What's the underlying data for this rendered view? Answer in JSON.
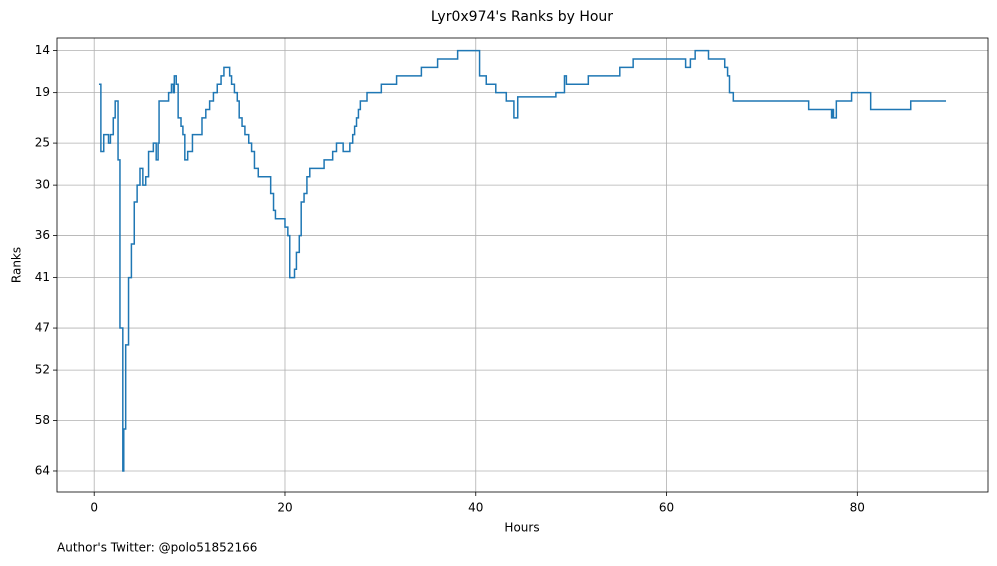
{
  "chart_data": {
    "type": "line",
    "title": "Lyr0x974's Ranks by Hour",
    "xlabel": "Hours",
    "ylabel": "Ranks",
    "footer": "Author's Twitter: @polo51852166",
    "drawstyle": "steps-post",
    "grid": true,
    "inverted_y": true,
    "xlim": [
      -3.9,
      93.7
    ],
    "ylim": [
      66.5,
      12.5
    ],
    "xticks": [
      0,
      20,
      40,
      60,
      80
    ],
    "yticks": [
      14,
      19,
      25,
      30,
      36,
      41,
      47,
      52,
      58,
      64
    ],
    "series": [
      {
        "color": "#1f77b4",
        "x": [
          0.5,
          0.7,
          1.0,
          1.5,
          1.7,
          2.0,
          2.2,
          2.5,
          2.7,
          3.0,
          3.1,
          3.3,
          3.6,
          3.9,
          4.2,
          4.5,
          4.8,
          5.1,
          5.4,
          5.7,
          6.2,
          6.5,
          6.7,
          6.8,
          7.8,
          8.1,
          8.3,
          8.4,
          8.6,
          8.8,
          9.1,
          9.3,
          9.5,
          9.8,
          10.3,
          11.3,
          11.7,
          12.1,
          12.5,
          12.9,
          13.3,
          13.6,
          14.2,
          14.4,
          14.7,
          15.0,
          15.2,
          15.5,
          15.8,
          16.2,
          16.5,
          16.8,
          17.2,
          18.5,
          18.8,
          19.0,
          20.0,
          20.3,
          20.5,
          20.8,
          21.0,
          21.2,
          21.5,
          21.7,
          22.0,
          22.3,
          22.6,
          24.1,
          25.0,
          25.4,
          26.1,
          26.8,
          27.1,
          27.3,
          27.5,
          27.7,
          27.9,
          28.6,
          30.1,
          31.7,
          34.3,
          36.0,
          38.1,
          39.8,
          40.4,
          41.1,
          42.1,
          43.2,
          44.0,
          44.4,
          48.4,
          49.3,
          49.5,
          51.8,
          55.1,
          56.5,
          62.0,
          62.5,
          63.0,
          64.4,
          66.1,
          66.4,
          66.6,
          67.0,
          74.9,
          77.3,
          77.4,
          77.5,
          77.8,
          79.4,
          81.4,
          85.6,
          89.3
        ],
        "values": [
          18,
          26,
          24,
          25,
          24,
          22,
          20,
          27,
          47,
          64,
          59,
          49,
          41,
          37,
          32,
          30,
          28,
          30,
          29,
          26,
          25,
          27,
          25,
          20,
          19,
          18,
          19,
          17,
          18,
          22,
          23,
          24,
          27,
          26,
          24,
          22,
          21,
          20,
          19,
          18,
          17,
          16,
          17,
          18,
          19,
          20,
          22,
          23,
          24,
          25,
          26,
          28,
          29,
          31,
          33,
          34,
          35,
          36,
          41,
          41,
          40,
          38,
          36,
          32,
          31,
          29,
          28,
          27,
          26,
          25,
          26,
          25,
          24,
          23,
          22,
          21,
          20,
          19,
          18,
          17,
          16,
          15,
          14,
          14,
          17,
          18,
          19,
          20,
          22,
          19.5,
          19,
          17,
          18,
          17,
          16,
          15,
          16,
          15,
          14,
          15,
          16,
          17,
          19,
          20,
          21,
          22,
          21,
          22,
          20,
          19,
          21,
          20,
          20
        ]
      }
    ]
  }
}
